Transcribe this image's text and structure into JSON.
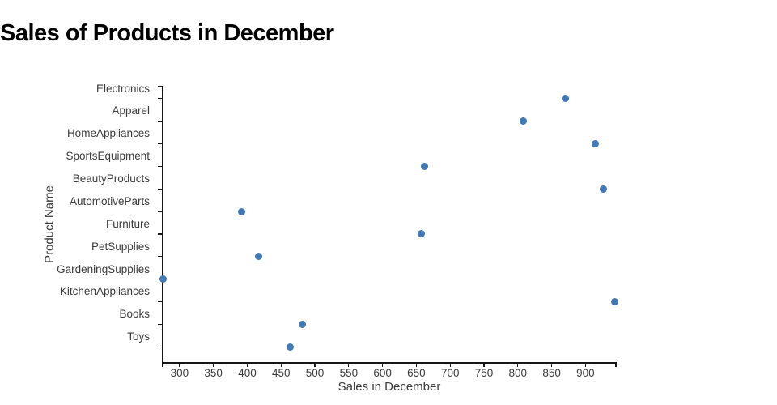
{
  "title": "Sales of Products in December",
  "chart_data": {
    "type": "scatter",
    "orientation": "horizontal-categorical",
    "title": "Sales of Products in December",
    "xlabel": "Sales in December",
    "ylabel": "Product Name",
    "categories": [
      "Electronics",
      "Apparel",
      "HomeAppliances",
      "SportsEquipment",
      "BeautyProducts",
      "AutomotiveParts",
      "Furniture",
      "PetSupplies",
      "GardeningSupplies",
      "KitchenAppliances",
      "Books",
      "Toys"
    ],
    "values": [
      870,
      808,
      915,
      662,
      927,
      392,
      657,
      417,
      275,
      943,
      481,
      463
    ],
    "xlim": [
      275,
      945
    ],
    "xticks": [
      300,
      350,
      400,
      450,
      500,
      550,
      600,
      650,
      700,
      750,
      800,
      850,
      900
    ],
    "grid": false,
    "legend": null,
    "colors": {
      "marker": "#4379b2",
      "axis": "#161616",
      "tick_text": "#3b3b3b",
      "title_text": "#000000"
    }
  }
}
